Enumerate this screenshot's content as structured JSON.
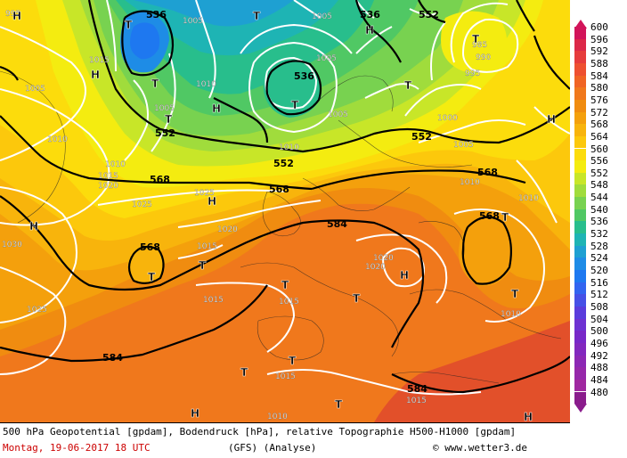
{
  "footer": {
    "description": "500 hPa Geopotential [gpdam], Bodendruck [hPa], relative Topographie H500-H1000 [gpdam]",
    "date": "Montag, 19-06-2017  18 UTC",
    "model": "(GFS)  (Analyse)",
    "copyright": "© www.wetter3.de"
  },
  "legend": {
    "values": [
      "600",
      "596",
      "592",
      "588",
      "584",
      "580",
      "576",
      "572",
      "568",
      "564",
      "560",
      "556",
      "552",
      "548",
      "544",
      "540",
      "536",
      "532",
      "528",
      "524",
      "520",
      "516",
      "512",
      "508",
      "504",
      "500",
      "496",
      "492",
      "488",
      "484",
      "480"
    ],
    "colors": [
      "#d2145a",
      "#dc2848",
      "#e63c3c",
      "#ee5030",
      "#f06424",
      "#f0781c",
      "#f08c10",
      "#f4a00c",
      "#f8b40c",
      "#fcc80c",
      "#fcdc0c",
      "#f4ec10",
      "#c8e628",
      "#a0dc3c",
      "#78d250",
      "#50c864",
      "#28be8c",
      "#1eb4b4",
      "#1ea0d2",
      "#1e8ce6",
      "#1e78f0",
      "#3264f0",
      "#4650e6",
      "#5a3cdc",
      "#6e32d2",
      "#7828c8",
      "#8228be",
      "#8c28b4",
      "#9628aa",
      "#a028a0",
      "#8a1c8c"
    ]
  },
  "map": {
    "geopotential_labels": [
      {
        "text": "536"
      },
      {
        "text": "536"
      },
      {
        "text": "552"
      },
      {
        "text": "536"
      },
      {
        "text": "552"
      },
      {
        "text": "552"
      },
      {
        "text": "552"
      },
      {
        "text": "568"
      },
      {
        "text": "568"
      },
      {
        "text": "568"
      },
      {
        "text": "568"
      },
      {
        "text": "568"
      },
      {
        "text": "584"
      },
      {
        "text": "584"
      },
      {
        "text": "584"
      },
      {
        "text": "536"
      }
    ],
    "pressure_labels": [
      {
        "text": "995"
      },
      {
        "text": "1005"
      },
      {
        "text": "1005"
      },
      {
        "text": "1005"
      },
      {
        "text": "1015"
      },
      {
        "text": "1010"
      },
      {
        "text": "1005"
      },
      {
        "text": "1005"
      },
      {
        "text": "1010"
      },
      {
        "text": "1005"
      },
      {
        "text": "1010"
      },
      {
        "text": "1015"
      },
      {
        "text": "1020"
      },
      {
        "text": "1010"
      },
      {
        "text": "1025"
      },
      {
        "text": "1025"
      },
      {
        "text": "1020"
      },
      {
        "text": "1015"
      },
      {
        "text": "1015"
      },
      {
        "text": "1030"
      },
      {
        "text": "1025"
      },
      {
        "text": "1010"
      },
      {
        "text": "1010"
      },
      {
        "text": "1000"
      },
      {
        "text": "1005"
      },
      {
        "text": "985"
      },
      {
        "text": "990"
      },
      {
        "text": "995"
      },
      {
        "text": "1010"
      },
      {
        "text": "1010"
      },
      {
        "text": "1020"
      },
      {
        "text": "1020"
      },
      {
        "text": "1015"
      },
      {
        "text": "1015"
      },
      {
        "text": "1010"
      },
      {
        "text": "1015"
      },
      {
        "text": "1010"
      },
      {
        "text": "1030"
      },
      {
        "text": "1005"
      }
    ],
    "centers": [
      {
        "text": "T"
      },
      {
        "text": "T"
      },
      {
        "text": "H"
      },
      {
        "text": "T"
      },
      {
        "text": "T"
      },
      {
        "text": "H"
      },
      {
        "text": "T"
      },
      {
        "text": "H"
      },
      {
        "text": "T"
      },
      {
        "text": "H"
      },
      {
        "text": "T"
      },
      {
        "text": "H"
      },
      {
        "text": "H"
      },
      {
        "text": "T"
      },
      {
        "text": "T"
      },
      {
        "text": "T"
      },
      {
        "text": "T"
      },
      {
        "text": "H"
      },
      {
        "text": "T"
      },
      {
        "text": "T"
      },
      {
        "text": "H"
      },
      {
        "text": "T"
      },
      {
        "text": "T"
      },
      {
        "text": "H"
      },
      {
        "text": "H"
      },
      {
        "text": "T"
      },
      {
        "text": "T"
      },
      {
        "text": "H"
      },
      {
        "text": "T"
      }
    ]
  }
}
